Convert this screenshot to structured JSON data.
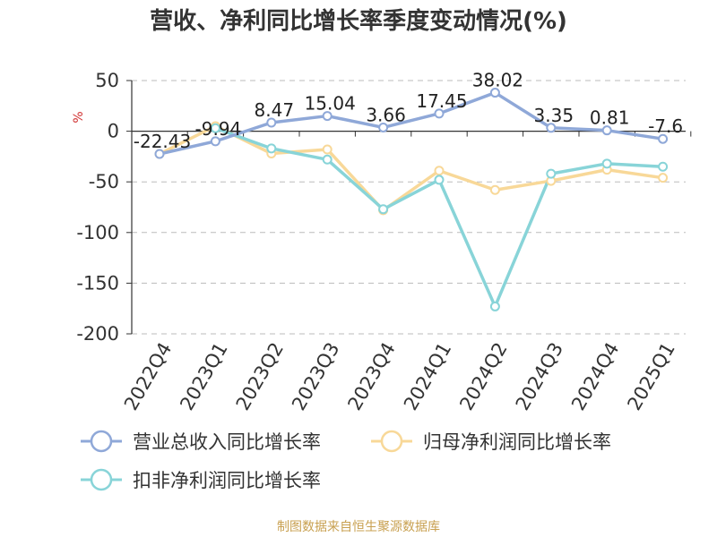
{
  "chart_data": {
    "type": "line",
    "title": "营收、净利同比增长率季度变动情况(%)",
    "ylabel": "%",
    "ylim": [
      -200,
      50
    ],
    "yticks": [
      50,
      0,
      -50,
      -100,
      -150,
      -200
    ],
    "categories": [
      "2022Q4",
      "2023Q1",
      "2023Q2",
      "2023Q3",
      "2023Q4",
      "2024Q1",
      "2024Q2",
      "2024Q3",
      "2024Q4",
      "2025Q1"
    ],
    "grid": "horizontal dashed",
    "legend_position": "bottom",
    "series": [
      {
        "name": "营业总收入同比增长率",
        "color": "#8fa8d8",
        "values": [
          -22.43,
          -9.94,
          8.47,
          15.04,
          3.66,
          17.45,
          38.02,
          3.35,
          0.81,
          -7.6
        ],
        "labels": [
          "-22.43",
          "-9.94",
          "8.47",
          "15.04",
          "3.66",
          "17.45",
          "38.02",
          "3.35",
          "0.81",
          "-7.6"
        ]
      },
      {
        "name": "归母净利润同比增长率",
        "color": "#f8d898",
        "values": [
          -22.43,
          5,
          -22,
          -18,
          -78,
          -39,
          -58,
          -49,
          -38,
          -46
        ]
      },
      {
        "name": "扣非净利润同比增长率",
        "color": "#88d4d8",
        "values": [
          null,
          3,
          -17,
          -28,
          -77,
          -48,
          -173,
          -42,
          -32,
          -35
        ]
      }
    ],
    "source": "制图数据来自恒生聚源数据库"
  }
}
